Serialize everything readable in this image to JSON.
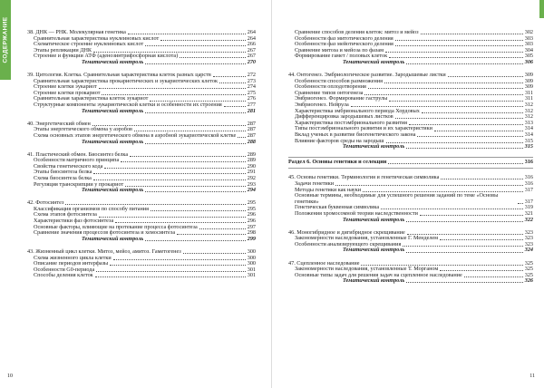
{
  "sidebar": "СОДЕРЖАНИЕ",
  "pages": [
    {
      "number": "10",
      "sections": [
        {
          "heading": {
            "text": "38. ДНК — РНК. Молекулярная генетика",
            "page": "264"
          },
          "items": [
            {
              "text": "Сравнительная характеристика нуклеиновых кислот",
              "page": "264"
            },
            {
              "text": "Схематическое строение нуклеиновых кислот",
              "page": "266"
            },
            {
              "text": "Этапы репликации ДНК",
              "page": "267"
            },
            {
              "text": "Строение и функции АТФ (аденозинтрифосфорная кислота)",
              "page": "267"
            }
          ],
          "control": {
            "text": "Тематический контроль",
            "page": "270"
          }
        },
        {
          "heading": {
            "text": "39. Цитология. Клетка. Сравнительная характеристика клеток разных царств",
            "page": "272"
          },
          "items": [
            {
              "text": "Сравнительная характеристика прокариотических и эукариотических клеток",
              "page": "273"
            },
            {
              "text": "Строение клетки эукариот",
              "page": "274"
            },
            {
              "text": "Строение клетки прокариот",
              "page": "275"
            },
            {
              "text": "Сравнительная характеристика клеток эукариот",
              "page": "276"
            },
            {
              "text": "Структурные компоненты эукариотической клетки и особенности их строения",
              "page": "277"
            }
          ],
          "control": {
            "text": "Тематический контроль",
            "page": "281"
          }
        },
        {
          "heading": {
            "text": "40. Энергетический обмен",
            "page": "287"
          },
          "items": [
            {
              "text": "Этапы энергетического обмена у аэробов",
              "page": "287"
            },
            {
              "text": "Схема основных этапов энергетического обмена в аэробной эукариотической клетке",
              "page": "287"
            }
          ],
          "control": {
            "text": "Тематический контроль",
            "page": "288"
          }
        },
        {
          "heading": {
            "text": "41. Пластический обмен. Биосинтез белка",
            "page": "289"
          },
          "items": [
            {
              "text": "Особенности матричного принципа",
              "page": "289"
            },
            {
              "text": "Свойства генетического кода",
              "page": "290"
            },
            {
              "text": "Этапы биосинтеза белка",
              "page": "291"
            },
            {
              "text": "Схема биосинтеза белка",
              "page": "292"
            },
            {
              "text": "Регуляция транскрипции у прокариот",
              "page": "293"
            }
          ],
          "control": {
            "text": "Тематический контроль",
            "page": "294"
          }
        },
        {
          "heading": {
            "text": "42. Фотосинтез",
            "page": "295"
          },
          "items": [
            {
              "text": "Классификация организмов по способу питания",
              "page": "295"
            },
            {
              "text": "Схема этапов фотосинтеза",
              "page": "296"
            },
            {
              "text": "Характеристики фаз фотосинтеза",
              "page": "296"
            },
            {
              "text": "Основные факторы, влияющие на протекание процесса фотосинтеза",
              "page": "297"
            },
            {
              "text": "Сравнение значения процессов фотосинтеза и хемосинтеза",
              "page": "298"
            }
          ],
          "control": {
            "text": "Тематический контроль",
            "page": "299"
          }
        },
        {
          "heading": {
            "text": "43. Жизненный цикл клетки. Митоз, мейоз, амитоз. Гаметогенез",
            "page": "300"
          },
          "items": [
            {
              "text": "Схема жизненного цикла клетки",
              "page": "300"
            },
            {
              "text": "Описание периодов интерфазы",
              "page": "300"
            },
            {
              "text": "Особенности G0-периода",
              "page": "301"
            },
            {
              "text": "Способы деления клеток",
              "page": "301"
            }
          ]
        }
      ]
    },
    {
      "number": "11",
      "sections": [
        {
          "items": [
            {
              "text": "Сравнение способов деления клеток: митоз и мейоз",
              "page": "302"
            },
            {
              "text": "Особенности фаз митотического деления",
              "page": "303"
            },
            {
              "text": "Особенности фаз мейотического деления",
              "page": "303"
            },
            {
              "text": "Сравнение митоза и мейоза по фазам",
              "page": "304"
            },
            {
              "text": "Формирование гамет / половых клеток",
              "page": "305"
            }
          ],
          "control": {
            "text": "Тематический контроль",
            "page": "306"
          }
        },
        {
          "heading": {
            "text": "44. Онтогенез. Эмбриологическое развитие. Зародышевые листки",
            "page": "309"
          },
          "items": [
            {
              "text": "Особенности способов размножения",
              "page": "309"
            },
            {
              "text": "Особенности оплодотворения",
              "page": "309"
            },
            {
              "text": "Сравнение типов онтогенеза",
              "page": "311"
            },
            {
              "text": "Эмбриогенез. Формирование гаструлы",
              "page": "311"
            },
            {
              "text": "Эмбриогенез. Нейрула",
              "page": "312"
            },
            {
              "text": "Характеристика эмбрионального периода Хордовых",
              "page": "312"
            },
            {
              "text": "Дифференцировка зародышевых листков",
              "page": "312"
            },
            {
              "text": "Характеристика постэмбрионального развития",
              "page": "313"
            },
            {
              "text": "Типы постэмбрионального развития и их характеристики",
              "page": "314"
            },
            {
              "text": "Вклад ученых в развитие биогенетического закона",
              "page": "314"
            },
            {
              "text": "Влияние факторов среды на зародыш",
              "page": "315"
            }
          ],
          "control": {
            "text": "Тематический контроль",
            "page": "315"
          }
        },
        {
          "part": {
            "text": "Раздел 6. Основы генетики и селекции",
            "page": "316"
          }
        },
        {
          "heading": {
            "text": "45. Основы генетики. Терминология и генетическая символика",
            "page": "316"
          },
          "items": [
            {
              "text": "Задачи генетики",
              "page": "316"
            },
            {
              "text": "Методы генетики как науки",
              "page": "317"
            },
            {
              "text": "Основные термины, необходимые для успешного решения заданий по теме «Основы генетики»",
              "page": "317"
            },
            {
              "text": "Генетическая буквенная символика",
              "page": "319"
            },
            {
              "text": "Положения хромосомной теории наследственности",
              "page": "321"
            }
          ],
          "control": {
            "text": "Тематический контроль",
            "page": "322"
          }
        },
        {
          "heading": {
            "text": "46. Моногибридное и дигибридное скрещивание",
            "page": "323"
          },
          "items": [
            {
              "text": "Закономерности наследования, установленные Г. Менделем",
              "page": "323"
            },
            {
              "text": "Особенности анализирующего скрещивания",
              "page": "323"
            }
          ],
          "control": {
            "text": "Тематический контроль",
            "page": "324"
          }
        },
        {
          "heading": {
            "text": "47. Сцепленное наследование",
            "page": "325"
          },
          "items": [
            {
              "text": "Закономерности наследования, установленные Т. Морганом",
              "page": "325"
            },
            {
              "text": "Основные типы задач для решения задач на сцепленное наследование",
              "page": "325"
            }
          ],
          "control": {
            "text": "Тематический контроль",
            "page": "326"
          }
        }
      ]
    }
  ]
}
